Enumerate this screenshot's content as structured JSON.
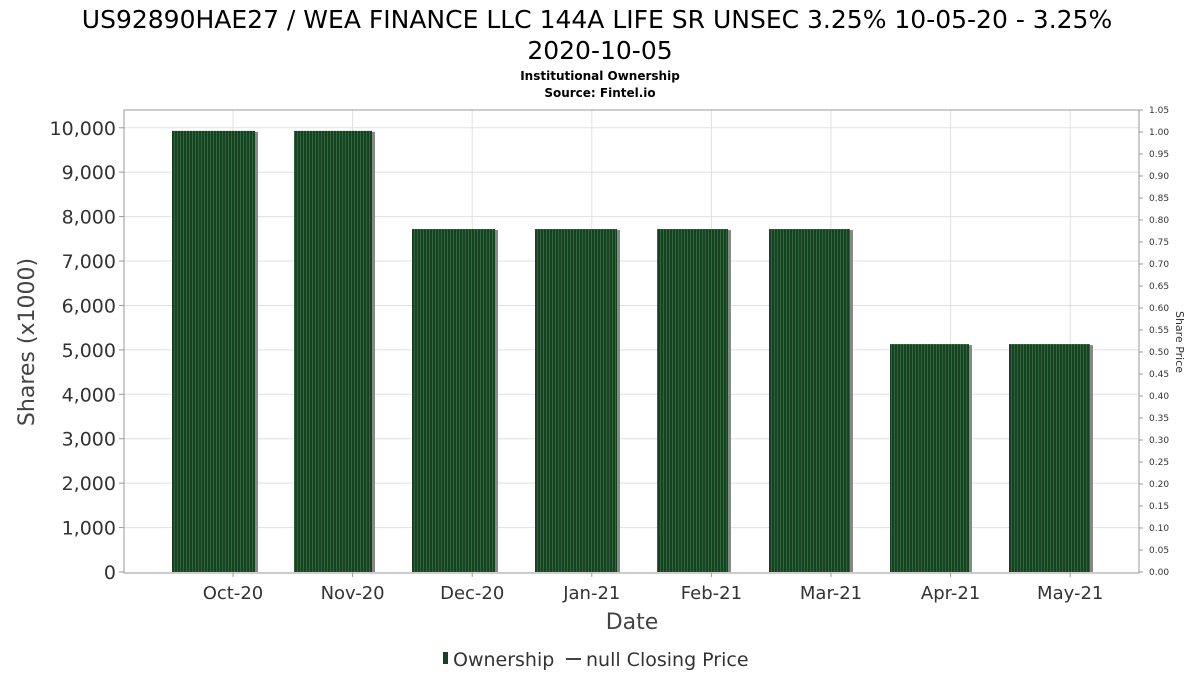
{
  "chart_data": {
    "type": "bar",
    "title": "US92890HAE27 / WEA FINANCE LLC 144A LIFE SR UNSEC 3.25% 10-05-20 - 3.25% 2020-10-05",
    "title_lines": [
      "US92890HAE27 / WEA FINANCE LLC 144A LIFE SR UNSEC 3.25% 10-05-20 - 3.25%",
      "2020-10-05"
    ],
    "subtitle_lines": [
      "Institutional Ownership",
      "Source: Fintel.io"
    ],
    "xlabel": "Date",
    "ylabel": "Shares (x1000)",
    "y2label": "Share Price",
    "categories": [
      "Oct-20",
      "Nov-20",
      "Dec-20",
      "Jan-21",
      "Feb-21",
      "Mar-21",
      "Apr-21",
      "May-21"
    ],
    "series": [
      {
        "name": "Ownership",
        "values": [
          9930,
          9930,
          7720,
          7720,
          7720,
          7720,
          5130,
          5130
        ]
      }
    ],
    "ylim": [
      0,
      10400
    ],
    "yticks": [
      0,
      1000,
      2000,
      3000,
      4000,
      5000,
      6000,
      7000,
      8000,
      9000,
      10000
    ],
    "ytick_labels": [
      "0",
      "1,000",
      "2,000",
      "3,000",
      "4,000",
      "5,000",
      "6,000",
      "7,000",
      "8,000",
      "9,000",
      "10,000"
    ],
    "y2lim": [
      0,
      1.05
    ],
    "y2ticks": [
      "0.00",
      "0.05",
      "0.10",
      "0.15",
      "0.20",
      "0.25",
      "0.30",
      "0.35",
      "0.40",
      "0.45",
      "0.50",
      "0.55",
      "0.60",
      "0.65",
      "0.70",
      "0.75",
      "0.80",
      "0.85",
      "0.90",
      "0.95",
      "1.00",
      "1.05"
    ],
    "legend": [
      {
        "label": "Ownership",
        "marker": "bar"
      },
      {
        "label": "null Closing Price",
        "marker": "line"
      }
    ],
    "legend_placement": "bottom-center",
    "grid": true,
    "bar_color": "#1a4023",
    "bar_stripe_color": "#2a6a38",
    "shadow_color": "#888888",
    "grid_color": "#e0e0e0"
  }
}
